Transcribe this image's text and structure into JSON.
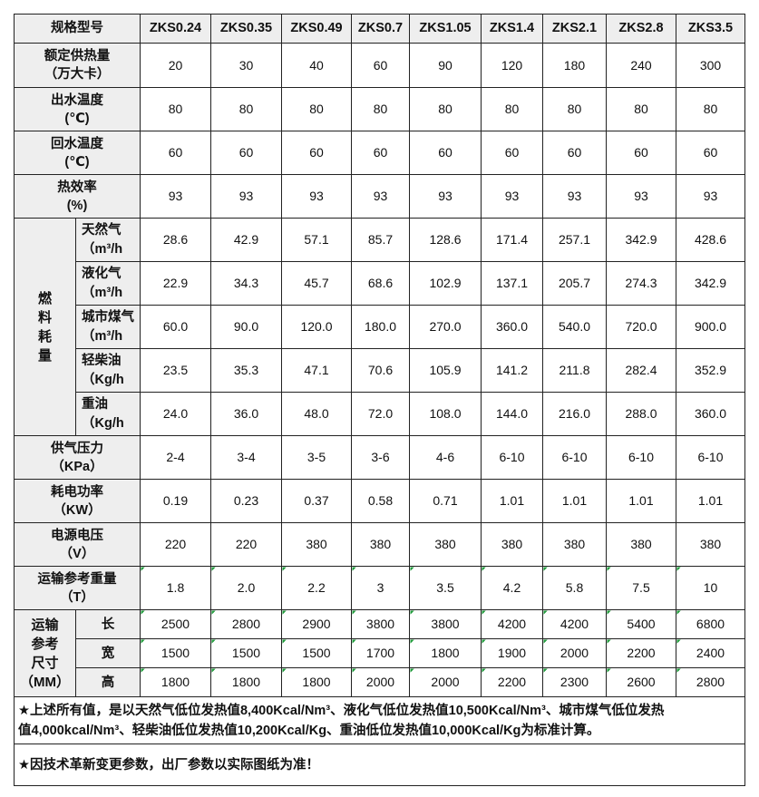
{
  "header": {
    "label": "规格型号",
    "models": [
      "ZKS0.24",
      "ZKS0.35",
      "ZKS0.49",
      "ZKS0.7",
      "ZKS1.05",
      "ZKS1.4",
      "ZKS2.1",
      "ZKS2.8",
      "ZKS3.5"
    ]
  },
  "rows": {
    "heat": {
      "l1": "额定供热量",
      "l2": "（万大卡）",
      "values": [
        "20",
        "30",
        "40",
        "60",
        "90",
        "120",
        "180",
        "240",
        "300"
      ]
    },
    "outlet": {
      "l1": "出水温度",
      "l2": "(℃)",
      "values": [
        "80",
        "80",
        "80",
        "80",
        "80",
        "80",
        "80",
        "80",
        "80"
      ]
    },
    "return": {
      "l1": "回水温度",
      "l2": "(℃)",
      "values": [
        "60",
        "60",
        "60",
        "60",
        "60",
        "60",
        "60",
        "60",
        "60"
      ]
    },
    "eff": {
      "l1": "热效率",
      "l2": "(%)",
      "values": [
        "93",
        "93",
        "93",
        "93",
        "93",
        "93",
        "93",
        "93",
        "93"
      ]
    }
  },
  "fuel": {
    "group_label": [
      "燃",
      "料",
      "耗",
      "量"
    ],
    "items": [
      {
        "l1": "天然气",
        "l2": "（m³/h",
        "values": [
          "28.6",
          "42.9",
          "57.1",
          "85.7",
          "128.6",
          "171.4",
          "257.1",
          "342.9",
          "428.6"
        ]
      },
      {
        "l1": "液化气",
        "l2": "（m³/h",
        "values": [
          "22.9",
          "34.3",
          "45.7",
          "68.6",
          "102.9",
          "137.1",
          "205.7",
          "274.3",
          "342.9"
        ]
      },
      {
        "l1": "城市煤气",
        "l2": "（m³/h",
        "values": [
          "60.0",
          "90.0",
          "120.0",
          "180.0",
          "270.0",
          "360.0",
          "540.0",
          "720.0",
          "900.0"
        ]
      },
      {
        "l1": "轻柴油",
        "l2": "（Kg/h",
        "values": [
          "23.5",
          "35.3",
          "47.1",
          "70.6",
          "105.9",
          "141.2",
          "211.8",
          "282.4",
          "352.9"
        ]
      },
      {
        "l1": "重油",
        "l2": "（Kg/h",
        "values": [
          "24.0",
          "36.0",
          "48.0",
          "72.0",
          "108.0",
          "144.0",
          "216.0",
          "288.0",
          "360.0"
        ]
      }
    ]
  },
  "rows2": {
    "gas": {
      "l1": "供气压力",
      "l2": "（KPa）",
      "values": [
        "2-4",
        "3-4",
        "3-5",
        "3-6",
        "4-6",
        "6-10",
        "6-10",
        "6-10",
        "6-10"
      ]
    },
    "power": {
      "l1": "耗电功率",
      "l2": "（KW）",
      "values": [
        "0.19",
        "0.23",
        "0.37",
        "0.58",
        "0.71",
        "1.01",
        "1.01",
        "1.01",
        "1.01"
      ]
    },
    "voltage": {
      "l1": "电源电压",
      "l2": "（V）",
      "values": [
        "220",
        "220",
        "380",
        "380",
        "380",
        "380",
        "380",
        "380",
        "380"
      ]
    },
    "weight": {
      "l1": "运输参考重量",
      "l2": "（T）",
      "values": [
        "1.8",
        "2.0",
        "2.2",
        "3",
        "3.5",
        "4.2",
        "5.8",
        "7.5",
        "10"
      ]
    }
  },
  "size": {
    "group_label": [
      "运输",
      "参考",
      "尺寸",
      "（MM）"
    ],
    "items": [
      {
        "label": "长",
        "values": [
          "2500",
          "2800",
          "2900",
          "3800",
          "3800",
          "4200",
          "4200",
          "5400",
          "6800"
        ]
      },
      {
        "label": "宽",
        "values": [
          "1500",
          "1500",
          "1500",
          "1700",
          "1800",
          "1900",
          "2000",
          "2200",
          "2400"
        ]
      },
      {
        "label": "高",
        "values": [
          "1800",
          "1800",
          "1800",
          "2000",
          "2000",
          "2200",
          "2300",
          "2600",
          "2800"
        ]
      }
    ]
  },
  "notes": {
    "n1a": "★上述所有值，是以天然气低位发热值8,400Kcal/Nm³、液化气低位发热值10,500Kcal/Nm³、城市煤气低位发热",
    "n1b": "值4,000kcal/Nm³、轻柴油低位发热值10,200Kcal/Kg、重油低位发热值10,000Kcal/Kg为标准计算。",
    "n2": "★因技术革新变更参数，出厂参数以实际图纸为准！"
  },
  "colors": {
    "header_bg": "#eeeeee",
    "border": "#222222",
    "tick_green": "#1e9a3a"
  }
}
